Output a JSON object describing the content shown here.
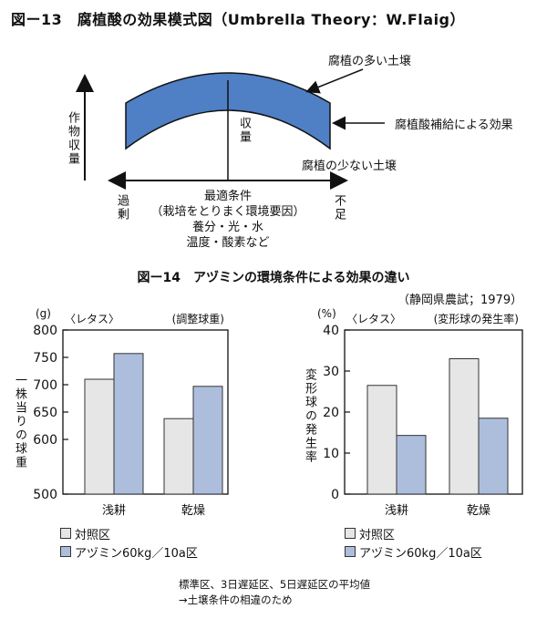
{
  "figure13": {
    "title": "図ー13　腐植酸の効果模式図（Umbrella Theory：W.Flaig）",
    "ylabel": "作物収量",
    "center_label": "収量",
    "label_rich": "腐植の多い土壌",
    "label_supply": "腐植酸補給による効果",
    "label_poor": "腐植の少ない土壌",
    "left_end": "過剰",
    "right_end": "不足",
    "center_lines": [
      "最適条件",
      "（栽培をとりまく環境要因）",
      "養分・光・水",
      "温度・酸素など"
    ],
    "colors": {
      "band": "#4f7fc4",
      "line": "#111111"
    }
  },
  "figure14": {
    "title": "図ー14　アヅミンの環境条件による効果の違い",
    "source": "（静岡県農試；1979）"
  },
  "legend": {
    "control": "対照区",
    "treatment": "アヅミン60kg／10a区"
  },
  "colors": {
    "control": "#e6e6e6",
    "treatment": "#adbedd",
    "stroke": "#333333"
  },
  "chart_data": [
    {
      "type": "bar",
      "crop": "〈レタス〉",
      "subtitle": "(調整球重)",
      "unit": "(g)",
      "ylabel": "一株当りの球重",
      "ylim": [
        500,
        800
      ],
      "yticks": [
        500,
        600,
        650,
        700,
        750,
        800
      ],
      "categories": [
        "浅耕",
        "乾燥"
      ],
      "series": [
        {
          "name": "対照区",
          "values": [
            710,
            638
          ]
        },
        {
          "name": "アヅミン60kg／10a区",
          "values": [
            757,
            697
          ]
        }
      ]
    },
    {
      "type": "bar",
      "crop": "〈レタス〉",
      "subtitle": "(変形球の発生率)",
      "unit": "(%)",
      "ylabel": "変形球の発生率",
      "ylim": [
        0,
        40
      ],
      "yticks": [
        0,
        10,
        20,
        30,
        40
      ],
      "categories": [
        "浅耕",
        "乾燥"
      ],
      "series": [
        {
          "name": "対照区",
          "values": [
            26.5,
            33
          ]
        },
        {
          "name": "アヅミン60kg／10a区",
          "values": [
            14.3,
            18.5
          ]
        }
      ]
    }
  ],
  "notes": [
    "標準区、3日遅延区、5日遅延区の平均値",
    "→土壌条件の相違のため"
  ]
}
